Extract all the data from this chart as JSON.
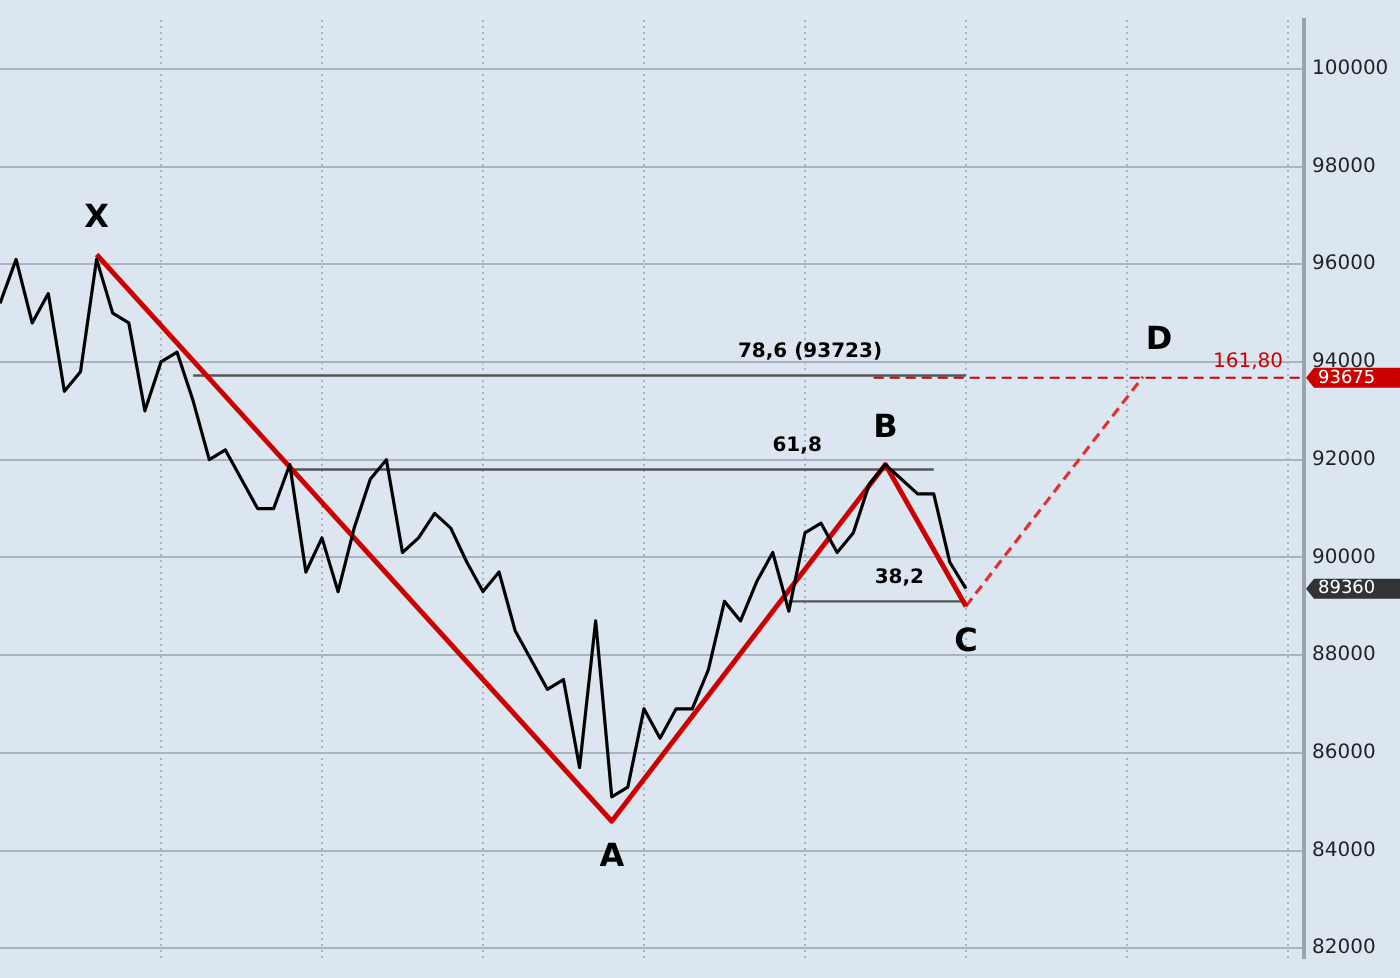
{
  "chart_data": {
    "type": "line",
    "tick_labels": "y",
    "grid": true,
    "ylim": [
      81800,
      101000
    ],
    "categories": [
      null,
      null,
      null,
      null,
      null,
      null,
      null,
      null,
      null,
      null,
      null,
      null,
      null,
      null,
      null,
      null,
      null,
      null,
      null,
      null,
      null,
      null,
      null,
      null,
      null,
      null,
      null,
      null,
      null,
      null,
      null,
      null,
      null,
      null,
      null,
      null,
      null,
      null,
      null,
      null,
      null,
      null,
      null,
      null,
      null,
      null,
      null,
      null,
      null,
      null,
      null,
      null,
      null,
      null,
      null,
      null,
      null,
      null,
      null,
      null,
      null,
      null,
      null,
      null,
      null,
      null,
      null,
      null,
      null,
      null,
      null,
      null,
      null,
      null,
      null,
      null,
      null,
      null,
      null,
      null,
      null,
      null
    ],
    "yticks": [
      82000,
      84000,
      86000,
      88000,
      90000,
      92000,
      94000,
      96000,
      98000,
      100000
    ],
    "series": [
      {
        "color": "#000000",
        "values": [
          95200,
          96100,
          94800,
          95400,
          93400,
          93800,
          96100,
          95000,
          94800,
          93000,
          94000,
          94200,
          93200,
          92000,
          92200,
          91600,
          91000,
          91000,
          91900,
          89700,
          90400,
          89300,
          90600,
          91600,
          92000,
          90100,
          90400,
          90900,
          90600,
          89900,
          89300,
          89700,
          88500,
          87900,
          87300,
          87500,
          85700,
          88700,
          85100,
          85300,
          86900,
          86300,
          86900,
          86900,
          87700,
          89100,
          88700,
          89500,
          90100,
          88900,
          90500,
          90700,
          90100,
          90500,
          91500,
          91900,
          91600,
          91300,
          91300,
          89900,
          89360,
          null,
          null,
          null,
          null,
          null,
          null,
          null,
          null,
          null,
          null,
          null,
          null,
          null,
          null,
          null,
          null,
          null,
          null,
          null,
          null,
          null
        ]
      },
      {
        "color": "#cc0000",
        "values": [
          null,
          null,
          null,
          null,
          null,
          null,
          96200,
          null,
          null,
          null,
          null,
          null,
          null,
          null,
          null,
          null,
          null,
          null,
          null,
          null,
          null,
          null,
          null,
          null,
          null,
          null,
          null,
          null,
          null,
          null,
          null,
          null,
          null,
          null,
          null,
          null,
          null,
          null,
          84600,
          null,
          null,
          null,
          null,
          null,
          null,
          null,
          null,
          null,
          null,
          null,
          null,
          null,
          null,
          null,
          null,
          91900,
          null,
          null,
          null,
          null,
          89000,
          null,
          null,
          null,
          null,
          null,
          null,
          null,
          null,
          null,
          null,
          null,
          null,
          null,
          null,
          null,
          null,
          null,
          null,
          null,
          null,
          null
        ]
      },
      {
        "color": "#e03030",
        "line_style": "dashed",
        "values": [
          null,
          null,
          null,
          null,
          null,
          null,
          null,
          null,
          null,
          null,
          null,
          null,
          null,
          null,
          null,
          null,
          null,
          null,
          null,
          null,
          null,
          null,
          null,
          null,
          null,
          null,
          null,
          null,
          null,
          null,
          null,
          null,
          null,
          null,
          null,
          null,
          null,
          null,
          null,
          null,
          null,
          null,
          null,
          null,
          null,
          null,
          null,
          null,
          null,
          null,
          null,
          null,
          null,
          null,
          null,
          null,
          null,
          null,
          null,
          null,
          89000,
          null,
          null,
          null,
          null,
          null,
          null,
          null,
          null,
          null,
          null,
          93700,
          null,
          null,
          null,
          null,
          null,
          null,
          null,
          null,
          null,
          null
        ]
      },
      {
        "color": "#555555",
        "values": [
          null,
          null,
          null,
          null,
          null,
          null,
          null,
          null,
          null,
          null,
          null,
          null,
          93723,
          null,
          null,
          null,
          null,
          null,
          null,
          null,
          null,
          null,
          null,
          null,
          null,
          null,
          null,
          null,
          null,
          null,
          null,
          null,
          null,
          null,
          null,
          null,
          null,
          null,
          null,
          null,
          null,
          null,
          null,
          null,
          null,
          null,
          null,
          null,
          null,
          null,
          null,
          null,
          null,
          null,
          null,
          null,
          null,
          null,
          null,
          null,
          93723,
          null,
          null,
          null,
          null,
          null,
          null,
          null,
          null,
          null,
          null,
          null,
          null,
          null,
          null,
          null,
          null,
          null,
          null,
          null,
          null,
          null
        ]
      },
      {
        "color": "#555555",
        "values": [
          null,
          null,
          null,
          null,
          null,
          null,
          null,
          null,
          null,
          null,
          null,
          null,
          null,
          null,
          null,
          null,
          null,
          null,
          91800,
          null,
          null,
          null,
          null,
          null,
          null,
          null,
          null,
          null,
          null,
          null,
          null,
          null,
          null,
          null,
          null,
          null,
          null,
          null,
          null,
          null,
          null,
          null,
          null,
          null,
          null,
          null,
          null,
          null,
          null,
          null,
          null,
          null,
          null,
          null,
          null,
          null,
          null,
          null,
          91800,
          null,
          null,
          null,
          null,
          null,
          null,
          null,
          null,
          null,
          null,
          null,
          null,
          null,
          null,
          null,
          null,
          null,
          null,
          null,
          null,
          null,
          null,
          null
        ]
      },
      {
        "color": "#555555",
        "values": [
          null,
          null,
          null,
          null,
          null,
          null,
          null,
          null,
          null,
          null,
          null,
          null,
          null,
          null,
          null,
          null,
          null,
          null,
          null,
          null,
          null,
          null,
          null,
          null,
          null,
          null,
          null,
          null,
          null,
          null,
          null,
          null,
          null,
          null,
          null,
          null,
          null,
          null,
          null,
          null,
          null,
          null,
          null,
          null,
          null,
          null,
          null,
          null,
          null,
          89100,
          null,
          null,
          null,
          null,
          null,
          null,
          null,
          null,
          null,
          null,
          89100,
          null,
          null,
          null,
          null,
          null,
          null,
          null,
          null,
          null,
          null,
          null,
          null,
          null,
          null,
          null,
          null,
          null,
          null,
          null,
          null,
          null
        ]
      }
    ],
    "ref_lines": [
      {
        "axis": "y",
        "value": 93675,
        "label": "93675",
        "color": "#cc0000",
        "line_style": "dashed"
      }
    ],
    "annotations": [
      "X",
      "A",
      "B",
      "C",
      "D",
      "78,6 (93723)",
      "61,8",
      "38,2",
      "161,80",
      "89360"
    ]
  }
}
